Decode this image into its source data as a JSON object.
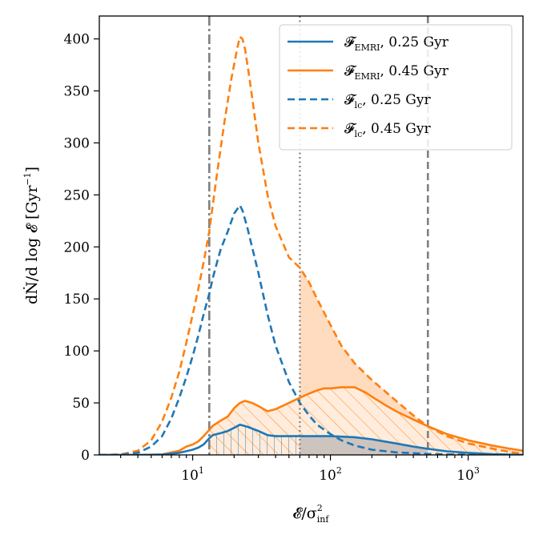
{
  "chart_data": {
    "type": "line",
    "xscale": "log",
    "xlim": [
      2.1,
      2500
    ],
    "ylim": [
      0,
      422
    ],
    "xlabel": {
      "main": "𝓔/σ",
      "sup": "2",
      "sub": "inf"
    },
    "ylabel": {
      "main": "dṄ/d log 𝓔 [Gyr",
      "sup": "−1",
      "close": "]"
    },
    "xticks": [
      {
        "value": 10,
        "label": "10",
        "exp": "1"
      },
      {
        "value": 100,
        "label": "10",
        "exp": "2"
      },
      {
        "value": 1000,
        "label": "10",
        "exp": "3"
      }
    ],
    "yticks": [
      0,
      50,
      100,
      150,
      200,
      250,
      300,
      350,
      400
    ],
    "ytick_labels": [
      "0",
      "50",
      "100",
      "150",
      "200",
      "250",
      "300",
      "350",
      "400"
    ],
    "vlines": [
      {
        "x": 13.2,
        "style": "dashdot",
        "color": "#808080"
      },
      {
        "x": 60,
        "style": "dotted",
        "color": "#808080"
      },
      {
        "x": 510,
        "style": "dashed",
        "color": "#808080"
      }
    ],
    "colors": {
      "blue": "#1f77b4",
      "orange": "#ff7f0e",
      "fill_orange": "#ffdcbf",
      "grey_fill": "#c8c0bc"
    },
    "series": [
      {
        "name": "F_EMRI, 0.25 Gyr",
        "legend": {
          "main": "𝓕",
          "sub": "EMRI",
          "rest": ", 0.25 Gyr"
        },
        "color": "#1f77b4",
        "style": "solid",
        "x": [
          2.1,
          4,
          6,
          8,
          10,
          11,
          12,
          13.2,
          14,
          16,
          18,
          20,
          22,
          25,
          30,
          35,
          40,
          50,
          60,
          80,
          100,
          150,
          200,
          300,
          400,
          500,
          700,
          1000,
          1500,
          2000,
          2500
        ],
        "y": [
          0,
          0,
          0.3,
          2,
          5,
          7,
          10,
          16,
          19,
          21,
          23,
          26,
          29,
          27,
          23,
          19,
          18,
          18,
          18,
          18,
          18,
          17,
          15,
          11,
          8,
          6,
          3.5,
          2,
          0.8,
          0.3,
          0.1
        ]
      },
      {
        "name": "F_EMRI, 0.45 Gyr",
        "legend": {
          "main": "𝓕",
          "sub": "EMRI",
          "rest": ", 0.45 Gyr"
        },
        "color": "#ff7f0e",
        "style": "solid",
        "x": [
          2.1,
          4,
          6,
          8,
          9,
          10,
          11,
          12,
          13.2,
          14,
          16,
          18,
          20,
          22,
          24,
          27,
          30,
          35,
          40,
          50,
          60,
          70,
          80,
          90,
          100,
          120,
          150,
          180,
          200,
          250,
          300,
          400,
          500,
          700,
          1000,
          1500,
          2000,
          2500
        ],
        "y": [
          0,
          0,
          0.5,
          4,
          8,
          10,
          13,
          18,
          24,
          28,
          33,
          37,
          45,
          50,
          52,
          50,
          47,
          42,
          44,
          50,
          55,
          59,
          62,
          64,
          64,
          65,
          65,
          60,
          56,
          48,
          42,
          34,
          28,
          20,
          14,
          9,
          6,
          4
        ]
      },
      {
        "name": "F_lc, 0.25 Gyr",
        "legend": {
          "main": "𝓕",
          "sub": "lc",
          "rest": ", 0.25 Gyr"
        },
        "color": "#1f77b4",
        "style": "dashed",
        "x": [
          2.1,
          3,
          4,
          5,
          6,
          7,
          8,
          9,
          10,
          11,
          12,
          13.2,
          14,
          15,
          16,
          18,
          20,
          22,
          23,
          25,
          30,
          35,
          40,
          50,
          60,
          70,
          80,
          100,
          120,
          150,
          200,
          300,
          500,
          800,
          1200,
          2000,
          2500
        ],
        "y": [
          0,
          0.3,
          2,
          8,
          18,
          35,
          55,
          75,
          95,
          115,
          135,
          155,
          170,
          185,
          198,
          215,
          232,
          240,
          235,
          218,
          175,
          135,
          105,
          70,
          50,
          38,
          29,
          20,
          14,
          9,
          5,
          2.5,
          1,
          0.4,
          0.2,
          0.05,
          0
        ]
      },
      {
        "name": "F_lc, 0.45 Gyr",
        "legend": {
          "main": "𝓕",
          "sub": "lc",
          "rest": ", 0.45 Gyr"
        },
        "color": "#ff7f0e",
        "style": "dashed",
        "x": [
          2.1,
          3,
          4,
          5,
          6,
          7,
          8,
          9,
          10,
          11,
          12,
          13.2,
          15,
          17,
          19,
          21,
          22,
          23,
          24,
          26,
          30,
          35,
          40,
          50,
          60,
          70,
          80,
          100,
          120,
          150,
          200,
          300,
          400,
          500,
          700,
          1000,
          1500,
          2000,
          2500
        ],
        "y": [
          0,
          0.5,
          4,
          14,
          32,
          55,
          80,
          108,
          135,
          160,
          185,
          215,
          270,
          320,
          360,
          390,
          402,
          400,
          390,
          360,
          300,
          250,
          220,
          190,
          180,
          166,
          150,
          125,
          105,
          88,
          72,
          52,
          38,
          28,
          18,
          11,
          6,
          3,
          1
        ]
      }
    ],
    "legend_position": "upper-right"
  }
}
